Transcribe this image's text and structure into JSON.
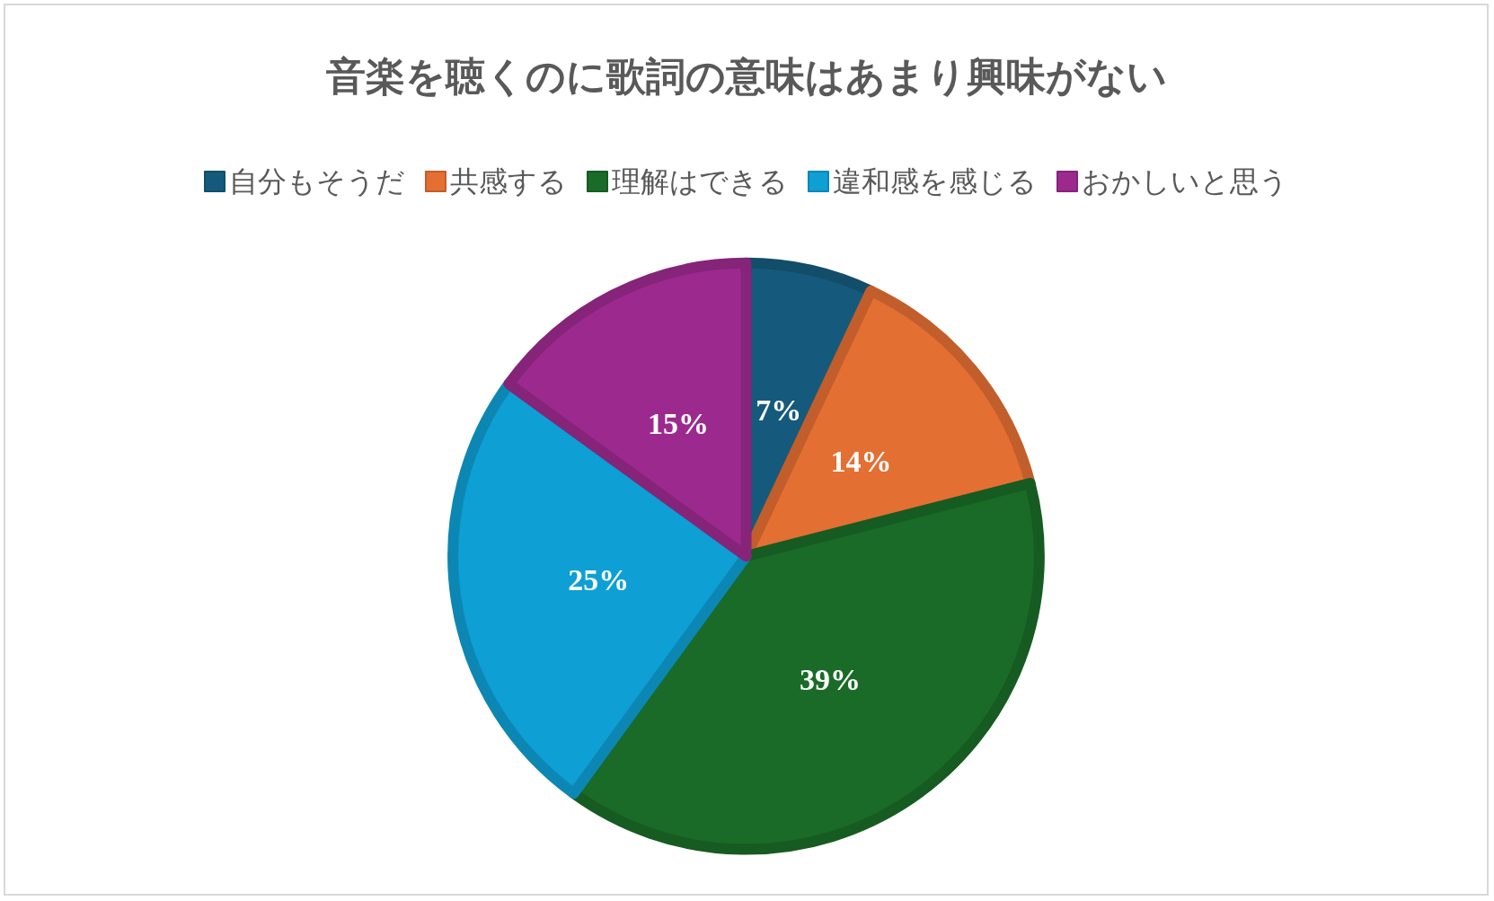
{
  "chart_data": {
    "type": "pie",
    "title": "音楽を聴くのに歌詞の意味はあまり興味がない",
    "categories": [
      "自分もそうだ",
      "共感する",
      "理解はできる",
      "違和感を感じる",
      "おかしいと思う"
    ],
    "values": [
      7,
      14,
      39,
      25,
      15
    ],
    "colors": [
      "#155a7c",
      "#e46f32",
      "#1a6b27",
      "#0e9fd4",
      "#9c2a8e"
    ],
    "value_labels": [
      "7%",
      "14%",
      "39%",
      "25%",
      "15%"
    ],
    "legend": "top"
  }
}
